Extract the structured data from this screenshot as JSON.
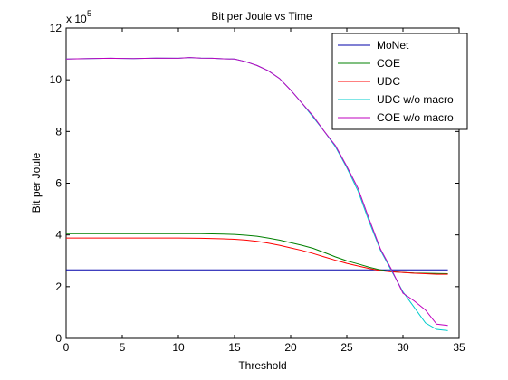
{
  "chart_data": {
    "type": "line",
    "title": "Bit per Joule vs Time",
    "xlabel": "Threshold",
    "ylabel": "Bit per Joule",
    "y_exponent_base": "x 10",
    "y_exponent_power": "5",
    "xlim": [
      0,
      35
    ],
    "ylim": [
      0,
      12
    ],
    "xticks": [
      0,
      5,
      10,
      15,
      20,
      25,
      30,
      35
    ],
    "yticks": [
      0,
      2,
      4,
      6,
      8,
      10,
      12
    ],
    "grid": false,
    "legend_position": "top-right",
    "series": [
      {
        "name": "MoNet",
        "color": "#0000aa",
        "x": [
          0,
          34
        ],
        "y": [
          2.65,
          2.65
        ]
      },
      {
        "name": "COE",
        "color": "#008000",
        "x": [
          0,
          2,
          4,
          6,
          8,
          10,
          12,
          14,
          15,
          16,
          17,
          18,
          19,
          20,
          21,
          22,
          23,
          24,
          25,
          26,
          27,
          28,
          29,
          30,
          31,
          32,
          33,
          34
        ],
        "y": [
          4.05,
          4.05,
          4.05,
          4.05,
          4.05,
          4.05,
          4.05,
          4.03,
          4.02,
          3.99,
          3.95,
          3.88,
          3.8,
          3.7,
          3.6,
          3.48,
          3.32,
          3.15,
          3.0,
          2.88,
          2.75,
          2.65,
          2.58,
          2.55,
          2.53,
          2.52,
          2.51,
          2.5
        ]
      },
      {
        "name": "UDC",
        "color": "#ff0000",
        "x": [
          0,
          2,
          4,
          6,
          8,
          10,
          12,
          14,
          15,
          16,
          17,
          18,
          19,
          20,
          21,
          22,
          23,
          24,
          25,
          26,
          27,
          28,
          29,
          30,
          31,
          32,
          33,
          34
        ],
        "y": [
          3.88,
          3.88,
          3.88,
          3.88,
          3.88,
          3.88,
          3.87,
          3.85,
          3.83,
          3.8,
          3.75,
          3.68,
          3.6,
          3.5,
          3.4,
          3.28,
          3.15,
          3.02,
          2.9,
          2.8,
          2.7,
          2.62,
          2.57,
          2.55,
          2.52,
          2.5,
          2.48,
          2.48
        ]
      },
      {
        "name": "UDC w/o macro",
        "color": "#00cccc",
        "x": [
          0,
          2,
          4,
          6,
          8,
          10,
          11,
          12,
          13,
          14,
          15,
          16,
          17,
          18,
          19,
          20,
          21,
          22,
          23,
          24,
          25,
          26,
          27,
          28,
          29,
          30,
          31,
          32,
          33,
          34
        ],
        "y": [
          10.8,
          10.82,
          10.83,
          10.82,
          10.84,
          10.83,
          10.86,
          10.84,
          10.83,
          10.81,
          10.8,
          10.7,
          10.55,
          10.35,
          10.05,
          9.6,
          9.1,
          8.55,
          8.0,
          7.4,
          6.6,
          5.7,
          4.5,
          3.4,
          2.6,
          1.8,
          1.2,
          0.6,
          0.35,
          0.3
        ]
      },
      {
        "name": "COE w/o macro",
        "color": "#bf00bf",
        "x": [
          0,
          2,
          4,
          6,
          8,
          10,
          11,
          12,
          13,
          14,
          15,
          16,
          17,
          18,
          19,
          20,
          21,
          22,
          23,
          24,
          25,
          26,
          27,
          28,
          29,
          30,
          31,
          32,
          33,
          34
        ],
        "y": [
          10.8,
          10.82,
          10.83,
          10.82,
          10.84,
          10.83,
          10.86,
          10.84,
          10.83,
          10.81,
          10.8,
          10.7,
          10.55,
          10.35,
          10.05,
          9.6,
          9.1,
          8.6,
          8.0,
          7.45,
          6.65,
          5.8,
          4.6,
          3.45,
          2.65,
          1.75,
          1.45,
          1.1,
          0.55,
          0.5
        ]
      }
    ]
  }
}
